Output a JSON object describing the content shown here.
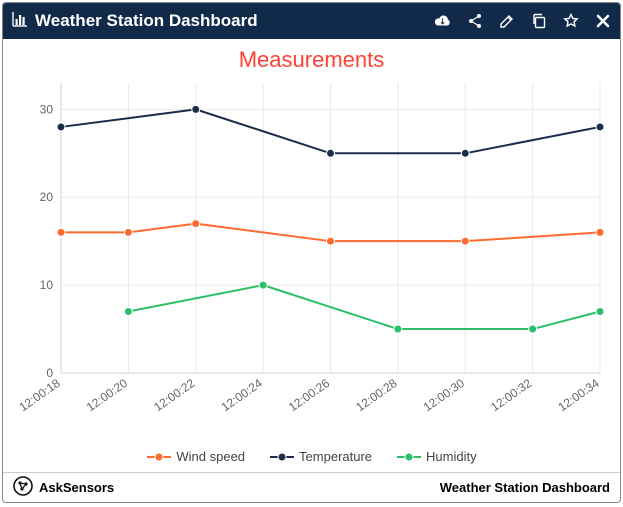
{
  "header": {
    "title": "Weather Station Dashboard",
    "background_color": "#112a4a",
    "text_color": "#ffffff"
  },
  "chart": {
    "type": "line",
    "title": "Measurements",
    "title_color": "#ff4136",
    "title_fontsize": 22,
    "background_color": "#ffffff",
    "grid_color": "#e8e8e8",
    "axis_color": "#d0d0d0",
    "tick_color": "#666666",
    "tick_fontsize": 12,
    "x_labels": [
      "12:00:18",
      "12:00:20",
      "12:00:22",
      "12:00:24",
      "12:00:26",
      "12:00:28",
      "12:00:30",
      "12:00:32",
      "12:00:34"
    ],
    "ylim": [
      0,
      33
    ],
    "yticks": [
      0,
      10,
      20,
      30
    ],
    "series": [
      {
        "name": "Wind speed",
        "color": "#ff6a2f",
        "line_width": 2,
        "marker_size": 4,
        "values": [
          16,
          16,
          17,
          null,
          15,
          null,
          15,
          null,
          16
        ]
      },
      {
        "name": "Temperature",
        "color": "#1b2d4a",
        "line_width": 2,
        "marker_size": 4,
        "values": [
          28,
          null,
          30,
          null,
          25,
          null,
          25,
          null,
          28
        ]
      },
      {
        "name": "Humidity",
        "color": "#2bbf6a",
        "line_width": 2,
        "marker_size": 4,
        "values": [
          null,
          7,
          null,
          10,
          null,
          5,
          null,
          5,
          7
        ]
      }
    ],
    "legend_fontsize": 13,
    "legend_color": "#444444"
  },
  "footer": {
    "brand": "AskSensors",
    "right": "Weather Station Dashboard"
  }
}
